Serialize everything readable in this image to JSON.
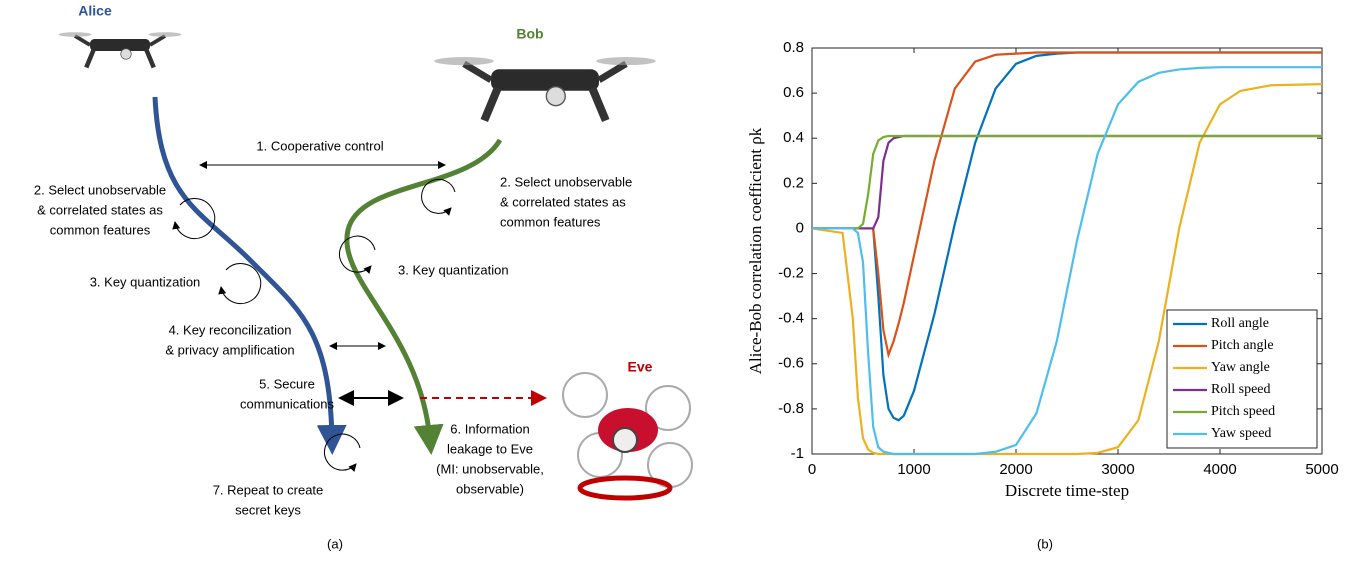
{
  "diagram": {
    "alice": "Alice",
    "bob": "Bob",
    "eve": "Eve",
    "labels": [
      {
        "lines": [
          "1. Cooperative control"
        ]
      },
      {
        "lines": [
          "2. Select unobservable",
          "& correlated states as",
          "common features"
        ]
      },
      {
        "lines": [
          "2. Select unobservable",
          "& correlated states as",
          "common features"
        ]
      },
      {
        "lines": [
          "3. Key quantization"
        ]
      },
      {
        "lines": [
          "3. Key quantization"
        ]
      },
      {
        "lines": [
          "4. Key reconcilization",
          "& privacy amplification"
        ]
      },
      {
        "lines": [
          "5. Secure",
          "communications"
        ]
      },
      {
        "lines": [
          "6. Information",
          "leakage to Eve",
          "(MI: unobservable,",
          "observable)"
        ]
      },
      {
        "lines": [
          "7. Repeat to create",
          "secret keys"
        ]
      }
    ],
    "caption": "(a)"
  },
  "chart_data": {
    "type": "line",
    "caption": "(b)",
    "xlabel": "Discrete time-step",
    "ylabel": "Alice-Bob correlation coefficient ρk",
    "x": [
      0,
      300,
      400,
      450,
      500,
      550,
      600,
      650,
      700,
      750,
      800,
      850,
      900,
      1000,
      1200,
      1400,
      1600,
      1800,
      2000,
      2200,
      2400,
      2600,
      2800,
      3000,
      3200,
      3400,
      3600,
      3800,
      4000,
      4200,
      4500,
      5000
    ],
    "series": [
      {
        "name": "Roll angle",
        "color": "#0072bd",
        "values": [
          0,
          0,
          0,
          0,
          0,
          0,
          0,
          -0.3,
          -0.65,
          -0.8,
          -0.84,
          -0.85,
          -0.83,
          -0.72,
          -0.38,
          0.02,
          0.38,
          0.62,
          0.73,
          0.765,
          0.775,
          0.78,
          0.78,
          0.78,
          0.78,
          0.78,
          0.78,
          0.78,
          0.78,
          0.78,
          0.78,
          0.78
        ]
      },
      {
        "name": "Pitch angle",
        "color": "#d95319",
        "values": [
          0,
          0,
          0,
          0,
          0,
          0,
          0,
          -0.2,
          -0.45,
          -0.56,
          -0.5,
          -0.42,
          -0.33,
          -0.12,
          0.3,
          0.62,
          0.74,
          0.77,
          0.775,
          0.78,
          0.78,
          0.78,
          0.78,
          0.78,
          0.78,
          0.78,
          0.78,
          0.78,
          0.78,
          0.78,
          0.78,
          0.78
        ]
      },
      {
        "name": "Yaw angle",
        "color": "#edb120",
        "values": [
          0,
          -0.02,
          -0.4,
          -0.75,
          -0.93,
          -0.98,
          -0.995,
          -1,
          -1,
          -1,
          -1,
          -1,
          -1,
          -1,
          -1,
          -1,
          -1,
          -1,
          -1,
          -1,
          -1,
          -1,
          -0.995,
          -0.97,
          -0.85,
          -0.5,
          0,
          0.38,
          0.55,
          0.61,
          0.635,
          0.64
        ]
      },
      {
        "name": "Roll speed",
        "color": "#7e2f8e",
        "values": [
          0,
          0,
          0,
          0,
          0,
          0,
          0,
          0.05,
          0.3,
          0.38,
          0.4,
          0.405,
          0.41,
          0.41,
          0.41,
          0.41,
          0.41,
          0.41,
          0.41,
          0.41,
          0.41,
          0.41,
          0.41,
          0.41,
          0.41,
          0.41,
          0.41,
          0.41,
          0.41,
          0.41,
          0.41,
          0.41
        ]
      },
      {
        "name": "Pitch speed",
        "color": "#77ac30",
        "values": [
          0,
          0,
          0,
          0,
          0.02,
          0.15,
          0.33,
          0.39,
          0.405,
          0.41,
          0.41,
          0.41,
          0.41,
          0.41,
          0.41,
          0.41,
          0.41,
          0.41,
          0.41,
          0.41,
          0.41,
          0.41,
          0.41,
          0.41,
          0.41,
          0.41,
          0.41,
          0.41,
          0.41,
          0.41,
          0.41,
          0.41
        ]
      },
      {
        "name": "Yaw speed",
        "color": "#4dbeee",
        "values": [
          0,
          0,
          0,
          -0.02,
          -0.15,
          -0.55,
          -0.88,
          -0.97,
          -0.99,
          -0.995,
          -1,
          -1,
          -1,
          -1,
          -1,
          -1,
          -1,
          -0.99,
          -0.96,
          -0.82,
          -0.5,
          -0.05,
          0.33,
          0.55,
          0.65,
          0.69,
          0.705,
          0.712,
          0.715,
          0.715,
          0.715,
          0.715
        ]
      }
    ],
    "xlim": [
      0,
      5000
    ],
    "xticks": [
      0,
      1000,
      2000,
      3000,
      4000,
      5000
    ],
    "ylim": [
      -1,
      0.8
    ],
    "yticks": [
      -1,
      -0.8,
      -0.6,
      -0.4,
      -0.2,
      0,
      0.2,
      0.4,
      0.6,
      0.8
    ],
    "grid": false,
    "legend": "lower right"
  }
}
